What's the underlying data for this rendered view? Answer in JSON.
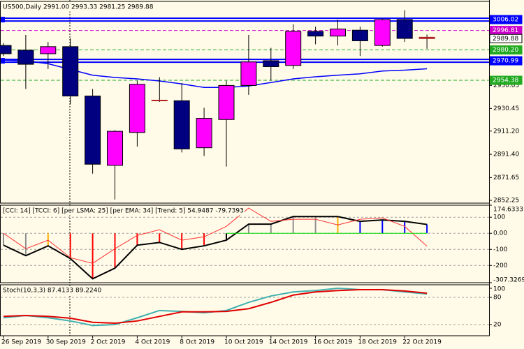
{
  "chart_data": [
    {
      "type": "candlestick",
      "title": "US500,Daily  2991.00 2993.33 2981.25 2989.88",
      "categories": [
        "26 Sep 2019",
        null,
        "30 Sep 2019",
        null,
        "2 Oct 2019",
        null,
        "4 Oct 2019",
        null,
        "8 Oct 2019",
        null,
        "10 Oct 2019",
        null,
        "14 Oct 2019",
        null,
        "16 Oct 2019",
        null,
        "18 Oct 2019",
        null,
        "22 Oct 2019",
        null
      ],
      "open": [
        2984,
        2980,
        2977,
        2983,
        2941,
        2882,
        2910,
        2937.5,
        2937,
        2897,
        2921,
        2950,
        2971,
        2967,
        2996,
        2992,
        2997,
        2984,
        3006,
        2991.0
      ],
      "high": [
        2986,
        2993,
        2987,
        2990,
        2947,
        2912,
        2954,
        2957,
        2952,
        2931,
        2954,
        2993,
        2982,
        3002,
        3000,
        3006,
        3000,
        3007,
        3014,
        2993.33
      ],
      "low": [
        2975,
        2947,
        2964,
        2934,
        2875,
        2853,
        2898,
        2936,
        2893,
        2890,
        2881,
        2942,
        2954,
        2964,
        2985,
        2984,
        2975,
        2983,
        2987,
        2981.25
      ],
      "close": [
        2977,
        2968,
        2983,
        2941,
        2883,
        2911,
        2951,
        2937,
        2896,
        2922,
        2950,
        2970,
        2966,
        2996,
        2992,
        2998,
        2988,
        3006,
        2990,
        2989.88
      ],
      "bull_color": "#ff00ff",
      "bear_color": "#000080",
      "doji_color": "#b22222",
      "ma": {
        "color": "#0000ff",
        "values": [
          2971.5,
          2970.9,
          2968.5,
          2963.6,
          2958.7,
          2956.8,
          2955.6,
          2953.8,
          2951.3,
          2948.3,
          2948.3,
          2949.5,
          2952.5,
          2955.6,
          2957.4,
          2958.7,
          2959.9,
          2962.3,
          2963.0,
          2964.2
        ]
      },
      "levels": [
        {
          "value": 3006.02,
          "color": "#0000ff",
          "style": "solid"
        },
        {
          "value": 2996.81,
          "color": "#cc00cc",
          "style": "dashed"
        },
        {
          "value": 2989.88,
          "color": "#000000",
          "style": "price"
        },
        {
          "value": 2980.2,
          "label": "2980.20",
          "color": "#22aa22",
          "style": "dashed"
        },
        {
          "value": 2970.99,
          "color": "#0000ff",
          "style": "solid"
        },
        {
          "value": 2954.38,
          "color": "#22aa22",
          "style": "dashed"
        }
      ],
      "ylim": [
        2849.9,
        3021.5
      ],
      "yticks": [
        2852.25,
        2871.65,
        {
          "value": 2891.4,
          "label": "2891.40"
        },
        {
          "value": 2911.2,
          "label": "2911.20"
        },
        2930.45,
        2950.05
      ]
    },
    {
      "type": "cci",
      "title": "[CCI: 14] [TCCI: 6] [per LSMA: 25] [per EMA: 34] [Trend: 5]  54.9487 -79.7393",
      "ylim": [
        -307.3269,
        174.6333
      ],
      "yticks": [
        174.6333,
        100,
        {
          "value": 0,
          "label": "0.00"
        },
        -100,
        -200,
        -307.3269
      ],
      "levels": [
        100,
        0,
        -100,
        -200
      ],
      "series": [
        {
          "color": "#000000",
          "style": "histogram-line",
          "bar_colors": [
            "#909090",
            "#909090",
            "#ffb000",
            "#ff0000",
            "#ff0000",
            "#ff0000",
            "#ff0000",
            "#ff0000",
            "#ff0000",
            "#ff0000",
            "#000000",
            "#909090",
            "#909090",
            "#909090",
            "#909090",
            "#ffb000",
            "#0000ff",
            "#0000ff",
            "#0000ff",
            "#0000ff"
          ],
          "values": [
            -74,
            -139,
            -78,
            -157,
            -283,
            -217,
            -74,
            -57,
            -100,
            -78,
            -43,
            57,
            57,
            104,
            104,
            104,
            74,
            83,
            74,
            54.9487
          ]
        },
        {
          "color": "#ff3030",
          "style": "line",
          "values": [
            0,
            -96,
            -43,
            -152,
            -187,
            -96,
            -13,
            22,
            -43,
            -22,
            43,
            157,
            74,
            87,
            87,
            52,
            87,
            96,
            43,
            -79.7393
          ]
        },
        {
          "color": "#00dd00",
          "style": "line",
          "values": [
            null,
            null,
            null,
            null,
            null,
            null,
            null,
            null,
            null,
            null,
            0,
            0,
            0,
            0,
            0,
            0,
            0,
            0,
            0,
            0
          ]
        }
      ]
    },
    {
      "type": "stochastic",
      "title": "Stoch(10,3,3) 87.4133 89.2240",
      "ylim": [
        -4.6,
        107.7
      ],
      "yticks": [
        100,
        80,
        20
      ],
      "levels": [
        80,
        20
      ],
      "series": [
        {
          "color": "#40b0b0",
          "style": "line",
          "values": [
            35,
            40,
            35,
            28,
            18,
            20,
            35,
            51,
            49,
            46,
            51,
            69,
            83,
            92,
            95,
            100,
            97,
            97,
            92,
            87.4133
          ]
        },
        {
          "color": "#e00000",
          "style": "line",
          "values": [
            38,
            40,
            38,
            34,
            25,
            23,
            28,
            38,
            48,
            48,
            49,
            55,
            69,
            85,
            92,
            95,
            97,
            97,
            94,
            89.224
          ]
        }
      ]
    }
  ]
}
